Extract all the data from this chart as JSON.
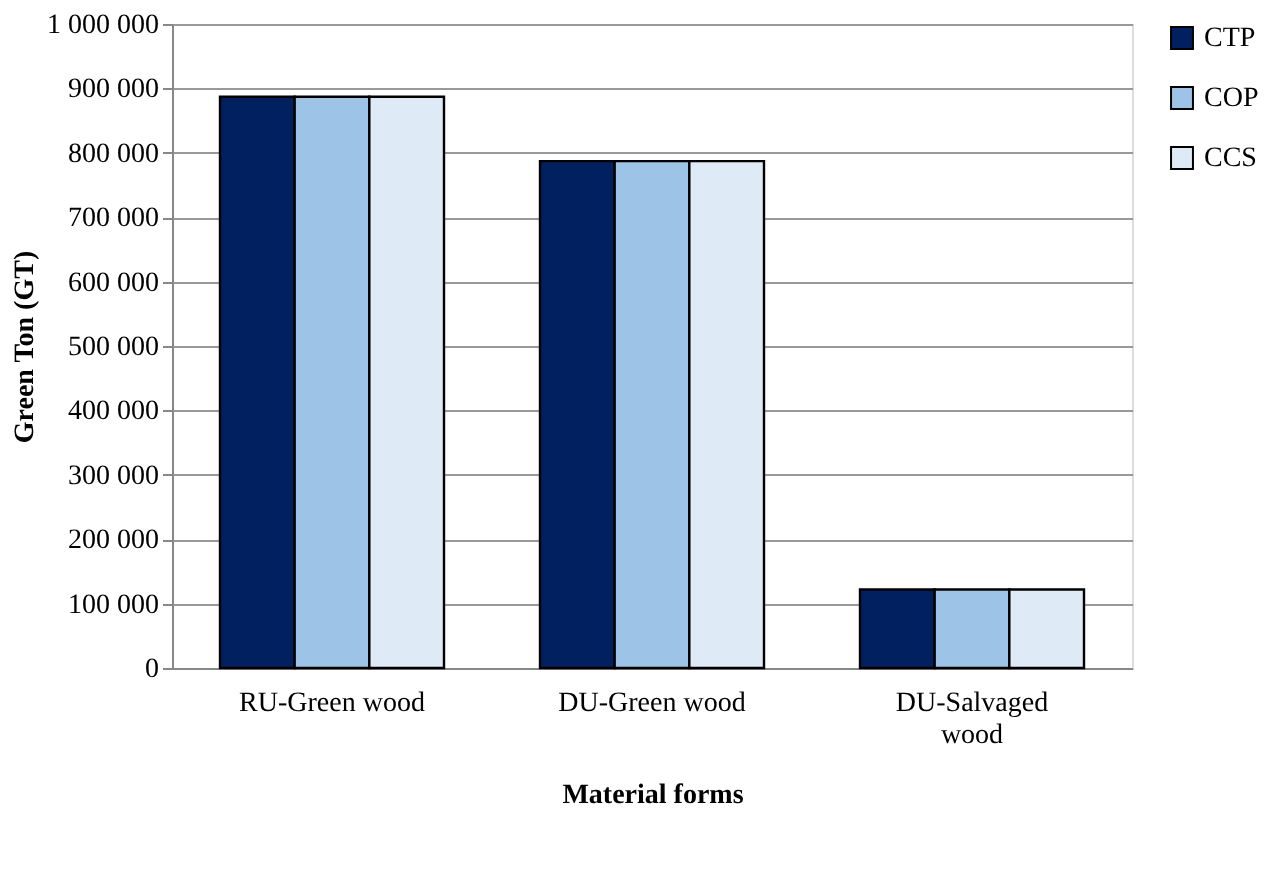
{
  "chart_data": {
    "type": "bar",
    "xlabel": "Material forms",
    "ylabel": "Green Ton (GT)",
    "categories": [
      "RU-Green wood",
      "DU-Green wood",
      "DU-Salvaged wood"
    ],
    "series": [
      {
        "name": "CTP",
        "color": "#002060",
        "values": [
          887000,
          787000,
          122000
        ]
      },
      {
        "name": "COP",
        "color": "#9dc3e6",
        "values": [
          887000,
          787000,
          122000
        ]
      },
      {
        "name": "CCS",
        "color": "#deebf7",
        "values": [
          887000,
          787000,
          122000
        ]
      }
    ],
    "ylim": [
      0,
      1000000
    ],
    "yticks": [
      0,
      {
        "value": 100000,
        "label": "100 000"
      },
      {
        "value": 200000,
        "label": "200 000"
      },
      {
        "value": 300000,
        "label": "300 000"
      },
      {
        "value": 400000,
        "label": "400 000"
      },
      {
        "value": 500000,
        "label": "500 000"
      },
      {
        "value": 600000,
        "label": "600 000"
      },
      {
        "value": 700000,
        "label": "700 000"
      },
      {
        "value": 800000,
        "label": "800 000"
      },
      {
        "value": 900000,
        "label": "900 000"
      },
      {
        "value": 1000000,
        "label": "1 000 000"
      }
    ],
    "grid": "y",
    "legend": "right"
  }
}
